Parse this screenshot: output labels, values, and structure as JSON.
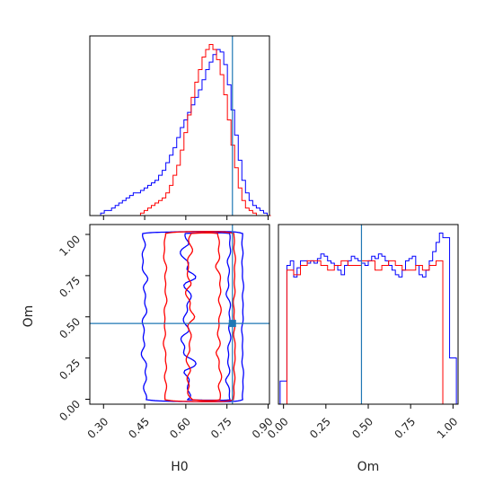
{
  "chart_data": {
    "type": "corner",
    "xlabel": "H0",
    "ylabel": "Om",
    "truth": {
      "H0": 0.77,
      "Om": 0.46
    },
    "colors": {
      "series_a": "#0000ff",
      "series_b": "#ff0000",
      "truth": "#1f77b4",
      "axis": "#000000"
    },
    "panels": {
      "h0_hist": {
        "xlim": [
          0.25,
          0.905
        ],
        "bin_edges": [
          0.25,
          0.2632,
          0.2764,
          0.2896,
          0.3028,
          0.316,
          0.3292,
          0.3424,
          0.3556,
          0.3688,
          0.382,
          0.3952,
          0.4084,
          0.4216,
          0.4348,
          0.448,
          0.4612,
          0.4744,
          0.4876,
          0.5008,
          0.514,
          0.5272,
          0.5404,
          0.5536,
          0.5668,
          0.58,
          0.5932,
          0.6064,
          0.6196,
          0.6328,
          0.646,
          0.6592,
          0.6724,
          0.6856,
          0.6988,
          0.712,
          0.7252,
          0.7384,
          0.7516,
          0.7648,
          0.778,
          0.7912,
          0.8044,
          0.8176,
          0.8308,
          0.844,
          0.8572,
          0.8704,
          0.8836,
          0.8968,
          0.91
        ],
        "series": [
          {
            "name": "",
            "color": "#0000ff",
            "values": [
              0,
              0,
              0,
              1,
              2,
              2,
              3,
              4,
              5,
              6,
              7,
              8,
              9,
              9,
              10,
              11,
              12,
              13,
              14,
              16,
              18,
              21,
              24,
              27,
              31,
              35,
              38,
              41,
              44,
              47,
              50,
              54,
              58,
              61,
              64,
              66,
              65,
              60,
              52,
              42,
              32,
              22,
              14,
              9,
              6,
              4,
              3,
              2,
              1,
              0
            ]
          },
          {
            "name": "",
            "color": "#ff0000",
            "values": [
              0,
              0,
              0,
              0,
              0,
              0,
              0,
              0,
              0,
              0,
              0,
              0,
              0,
              0,
              1,
              2,
              3,
              4,
              5,
              6,
              7,
              9,
              12,
              16,
              20,
              26,
              33,
              40,
              47,
              53,
              58,
              63,
              66,
              68,
              66,
              62,
              56,
              48,
              38,
              28,
              19,
              11,
              6,
              3,
              2,
              1,
              0,
              0,
              0,
              0
            ]
          }
        ]
      },
      "joint": {
        "xlim": [
          0.25,
          0.905
        ],
        "ylim": [
          -0.03,
          1.06
        ],
        "xticks": [
          "0.30",
          "0.45",
          "0.60",
          "0.75",
          "0.90"
        ],
        "yticks": [
          "0.00",
          "0.25",
          "0.50",
          "0.75",
          "1.00"
        ]
      },
      "om_hist": {
        "xlim": [
          -0.03,
          1.03
        ],
        "xticks": [
          "0.00",
          "0.25",
          "0.50",
          "0.75",
          "1.00"
        ],
        "bin_edges": [
          -0.02,
          0.0,
          0.02,
          0.04,
          0.06,
          0.08,
          0.1,
          0.12,
          0.14,
          0.16,
          0.18,
          0.2,
          0.22,
          0.24,
          0.26,
          0.28,
          0.3,
          0.32,
          0.34,
          0.36,
          0.38,
          0.4,
          0.42,
          0.44,
          0.46,
          0.48,
          0.5,
          0.52,
          0.54,
          0.56,
          0.58,
          0.6,
          0.62,
          0.64,
          0.66,
          0.68,
          0.7,
          0.72,
          0.74,
          0.76,
          0.78,
          0.8,
          0.82,
          0.84,
          0.86,
          0.88,
          0.9,
          0.92,
          0.94,
          0.96,
          0.98,
          1.0,
          1.02
        ],
        "series": [
          {
            "name": "",
            "color": "#0000ff",
            "values": [
              10,
              10,
              60,
              62,
              55,
              59,
              62,
              62,
              61,
              62,
              61,
              63,
              65,
              64,
              62,
              61,
              60,
              58,
              56,
              60,
              62,
              64,
              63,
              62,
              61,
              60,
              62,
              64,
              63,
              65,
              64,
              62,
              60,
              58,
              56,
              55,
              58,
              62,
              63,
              64,
              60,
              56,
              55,
              58,
              62,
              66,
              70,
              74,
              72,
              72,
              20,
              20
            ]
          },
          {
            "name": "",
            "color": "#ff0000",
            "values": [
              0,
              0,
              58,
              58,
              56,
              56,
              60,
              60,
              62,
              62,
              62,
              62,
              60,
              60,
              58,
              58,
              60,
              60,
              62,
              62,
              60,
              60,
              60,
              60,
              62,
              62,
              62,
              62,
              58,
              58,
              60,
              60,
              62,
              62,
              60,
              60,
              58,
              58,
              58,
              58,
              60,
              60,
              58,
              58,
              60,
              60,
              62,
              62,
              0,
              0,
              0,
              0
            ]
          }
        ]
      }
    }
  }
}
